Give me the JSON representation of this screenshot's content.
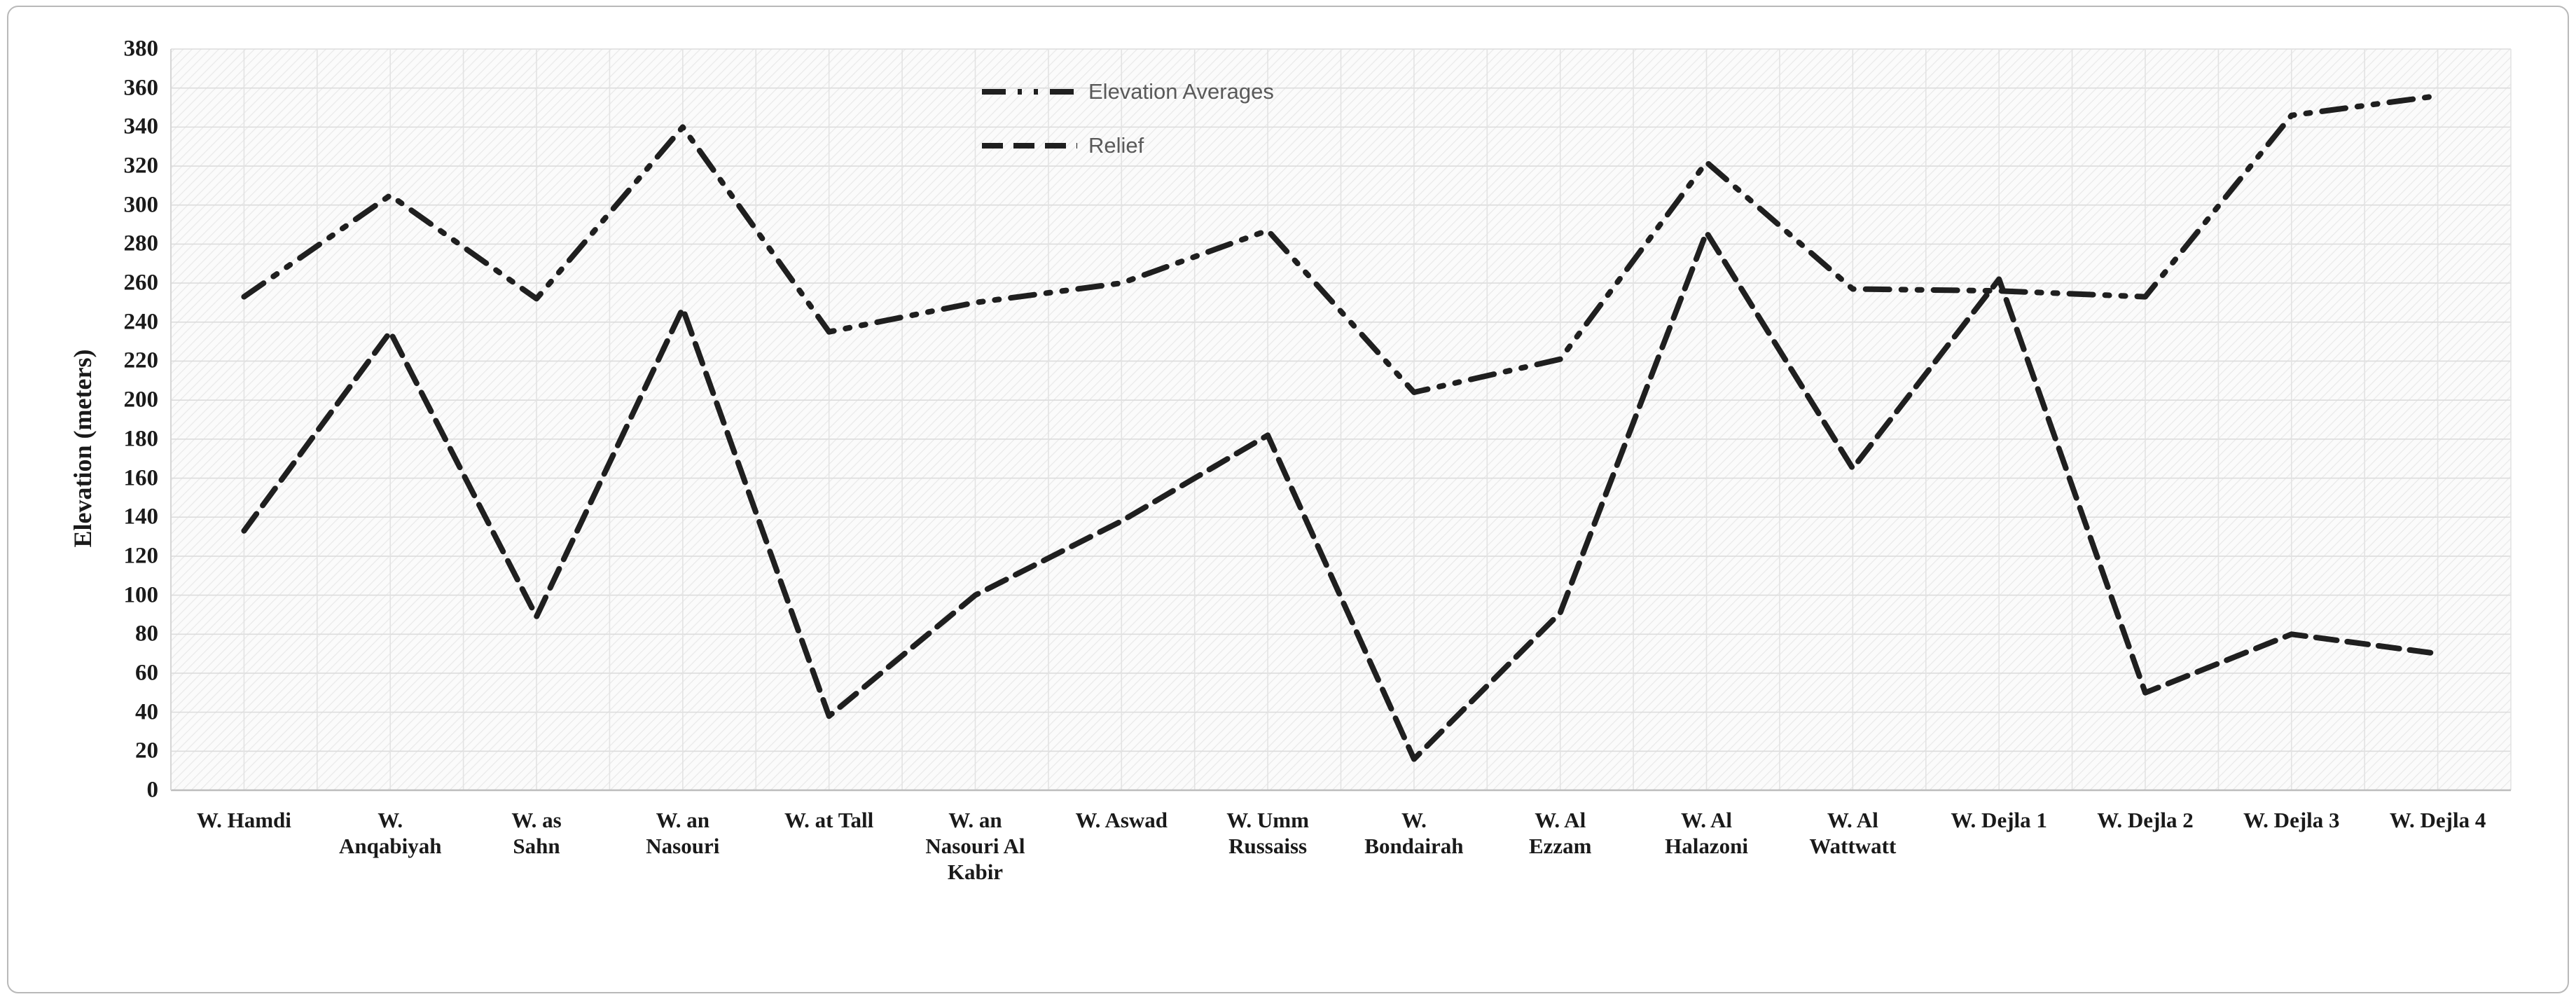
{
  "figure": {
    "background": "#ffffff",
    "border_color": "#b9b9b9",
    "text_color": "#1a1a1a",
    "legend_text_color": "#595959",
    "gridline_color": "#dcdcdc",
    "hatch_color": "#e9e9e9",
    "plot_bg_color": "#fbfbfb"
  },
  "chart_data": {
    "type": "line",
    "title": "",
    "xlabel": "",
    "ylabel": "Elevation (meters)",
    "ylim": [
      0,
      380
    ],
    "ytick_step": 20,
    "yticks": [
      0,
      20,
      40,
      60,
      80,
      100,
      120,
      140,
      160,
      180,
      200,
      220,
      240,
      260,
      280,
      300,
      320,
      340,
      360,
      380
    ],
    "grid": "on",
    "plot_background": "diagonal-hatch",
    "legend_position": "inside-top-center",
    "categories": [
      "W. Hamdi",
      "W. Anqabiyah",
      "W. as Sahn",
      "W. an Nasouri",
      "W. at Tall",
      "W. an Nasouri Al Kabir",
      "W. Aswad",
      "W. Umm Russaiss",
      "W. Bondairah",
      "W. Al Ezzam",
      "W. Al Halazoni",
      "W. Al Wattwatt",
      "W. Dejla 1",
      "W. Dejla 2",
      "W. Dejla 3",
      "W. Dejla 4"
    ],
    "categories_display": [
      "W. Hamdi",
      "W.\nAnqabiyah",
      "W. as\nSahn",
      "W. an\nNasouri",
      "W. at Tall",
      "W. an\nNasouri Al\nKabir",
      "W. Aswad",
      "W. Umm\nRussaiss",
      "W.\nBondairah",
      "W. Al\nEzzam",
      "W. Al\nHalazoni",
      "W. Al\nWattwatt",
      "W. Dejla 1",
      "W. Dejla 2",
      "W. Dejla 3",
      "W. Dejla 4"
    ],
    "series": [
      {
        "name": "Elevation Averages",
        "line_style": "dash-dot-dot",
        "color": "#1f1f1f",
        "values": [
          253,
          305,
          252,
          340,
          235,
          250,
          260,
          287,
          204,
          221,
          322,
          257,
          256,
          253,
          346,
          356
        ]
      },
      {
        "name": "Relief",
        "line_style": "dashed",
        "color": "#1f1f1f",
        "values": [
          133,
          235,
          89,
          247,
          38,
          100,
          138,
          182,
          16,
          91,
          286,
          165,
          262,
          50,
          80,
          70
        ]
      }
    ]
  }
}
